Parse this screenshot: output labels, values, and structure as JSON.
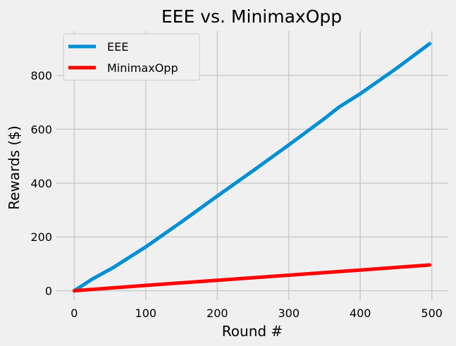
{
  "chart_data": {
    "type": "line",
    "title": "EEE vs. MinimaxOpp",
    "xlabel": "Round #",
    "ylabel": "Rewards ($)",
    "xlim": [
      -25,
      522
    ],
    "ylim": [
      -35,
      965
    ],
    "xticks": [
      0,
      100,
      200,
      300,
      400,
      500
    ],
    "yticks": [
      0,
      200,
      400,
      600,
      800
    ],
    "grid": true,
    "legend_position": "upper-left",
    "series": [
      {
        "name": "EEE",
        "color": "#008fd5",
        "x": [
          0,
          25,
          55,
          100,
          120,
          150,
          200,
          250,
          300,
          350,
          370,
          400,
          450,
          497
        ],
        "y": [
          0,
          43,
          87,
          163,
          200,
          256,
          352,
          446,
          542,
          640,
          682,
          732,
          825,
          918
        ]
      },
      {
        "name": "MinimaxOpp",
        "color": "#ff0000",
        "x": [
          0,
          100,
          200,
          300,
          400,
          497
        ],
        "y": [
          0,
          20,
          39,
          58,
          77,
          96
        ]
      }
    ]
  }
}
